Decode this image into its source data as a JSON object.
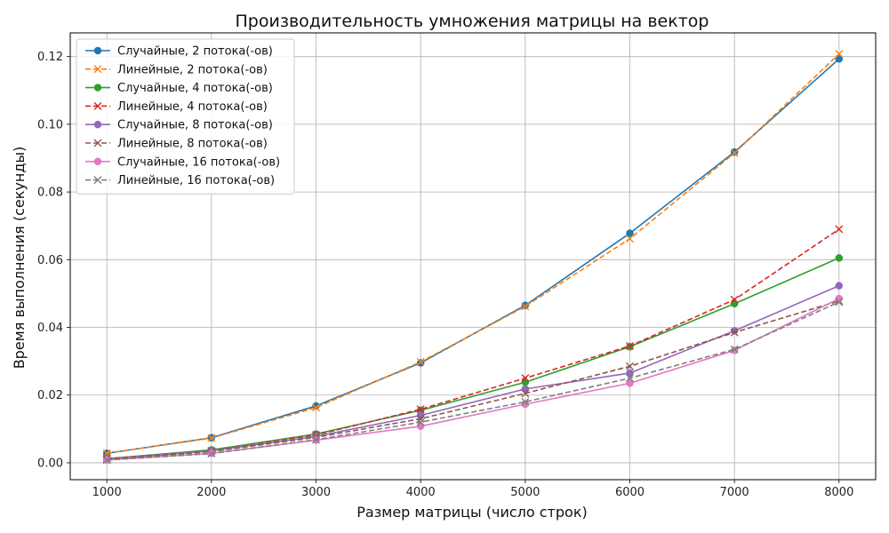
{
  "chart_data": {
    "type": "line",
    "title": "Производительность умножения матрицы на вектор",
    "xlabel": "Размер матрицы (число строк)",
    "ylabel": "Время выполнения (секунды)",
    "x": [
      1000,
      2000,
      3000,
      4000,
      5000,
      6000,
      7000,
      8000
    ],
    "xlim": [
      650,
      8350
    ],
    "ylim": [
      -0.005,
      0.127
    ],
    "xticks": [
      "1000",
      "2000",
      "3000",
      "4000",
      "5000",
      "6000",
      "7000",
      "8000"
    ],
    "yticks": [
      "0.00",
      "0.02",
      "0.04",
      "0.06",
      "0.08",
      "0.10",
      "0.12"
    ],
    "grid": true,
    "legend_position": "top-left",
    "series": [
      {
        "name": "Случайные, 2 потока(-ов)",
        "color": "#1f77b4",
        "dash": "solid",
        "marker": "circle",
        "values": [
          0.0028,
          0.0074,
          0.0168,
          0.0295,
          0.0465,
          0.0678,
          0.0918,
          0.1193
        ]
      },
      {
        "name": "Линейные, 2 потока(-ов)",
        "color": "#ff7f0e",
        "dash": "dashed",
        "marker": "x",
        "values": [
          0.0028,
          0.0073,
          0.0163,
          0.0298,
          0.0462,
          0.0662,
          0.0915,
          0.1208
        ]
      },
      {
        "name": "Случайные, 4 потока(-ов)",
        "color": "#2ca02c",
        "dash": "solid",
        "marker": "circle",
        "values": [
          0.0012,
          0.0038,
          0.0085,
          0.0155,
          0.0238,
          0.0343,
          0.047,
          0.0605
        ]
      },
      {
        "name": "Линейные, 4 потока(-ов)",
        "color": "#d62728",
        "dash": "dashed",
        "marker": "x",
        "values": [
          0.0012,
          0.0035,
          0.0082,
          0.0158,
          0.025,
          0.0345,
          0.0482,
          0.069
        ]
      },
      {
        "name": "Случайные, 8 потока(-ов)",
        "color": "#9467bd",
        "dash": "solid",
        "marker": "circle",
        "values": [
          0.001,
          0.0035,
          0.0078,
          0.014,
          0.0218,
          0.0265,
          0.039,
          0.0523
        ]
      },
      {
        "name": "Линейные, 8 потока(-ов)",
        "color": "#8c564b",
        "dash": "dashed",
        "marker": "x",
        "values": [
          0.001,
          0.0033,
          0.0075,
          0.013,
          0.0205,
          0.0285,
          0.0385,
          0.0478
        ]
      },
      {
        "name": "Случайные, 16 потока(-ов)",
        "color": "#e377c2",
        "dash": "solid",
        "marker": "circle",
        "values": [
          0.0008,
          0.0028,
          0.0067,
          0.0108,
          0.0173,
          0.0235,
          0.0332,
          0.0485
        ]
      },
      {
        "name": "Линейные, 16 потока(-ов)",
        "color": "#7f7f7f",
        "dash": "dashed",
        "marker": "x",
        "values": [
          0.0008,
          0.0027,
          0.0068,
          0.012,
          0.018,
          0.025,
          0.0335,
          0.0475
        ]
      }
    ]
  }
}
